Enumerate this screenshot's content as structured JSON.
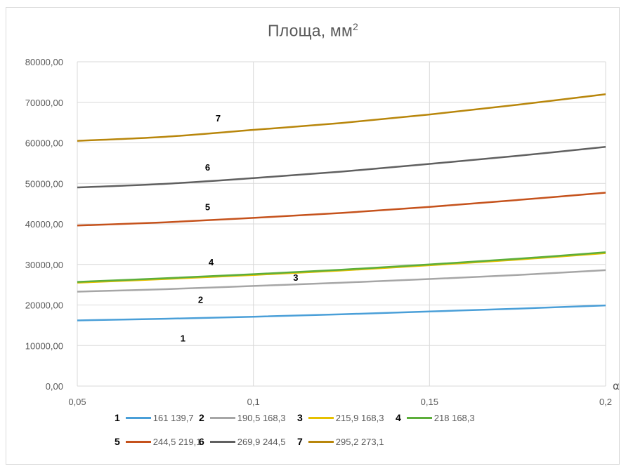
{
  "chart_data": {
    "type": "line",
    "title": "Площа, мм",
    "title_sup": "2",
    "xlabel": "α",
    "ylabel": "",
    "xlim": [
      0.05,
      0.2
    ],
    "ylim": [
      0,
      80000
    ],
    "x_ticks": [
      0.05,
      0.1,
      0.15,
      0.2
    ],
    "x_tick_labels": [
      "0,05",
      "0,1",
      "0,15",
      "0,2"
    ],
    "y_ticks": [
      0,
      10000,
      20000,
      30000,
      40000,
      50000,
      60000,
      70000,
      80000
    ],
    "y_tick_labels": [
      "0,00",
      "10000,00",
      "20000,00",
      "30000,00",
      "40000,00",
      "50000,00",
      "60000,00",
      "70000,00",
      "80000,00"
    ],
    "grid": true,
    "legend_position": "bottom",
    "x": [
      0.05,
      0.075,
      0.1,
      0.125,
      0.15,
      0.175,
      0.2
    ],
    "series": [
      {
        "id": "1",
        "name": "161 139,7",
        "color": "#4a9fd8",
        "label_at": [
          0.08,
          11000
        ],
        "values": [
          16200,
          16600,
          17100,
          17700,
          18400,
          19100,
          19900
        ]
      },
      {
        "id": "2",
        "name": "190,5 168,3",
        "color": "#a6a6a6",
        "label_at": [
          0.085,
          20500
        ],
        "values": [
          23300,
          23900,
          24700,
          25500,
          26400,
          27400,
          28600
        ]
      },
      {
        "id": "3",
        "name": "215,9 168,3",
        "color": "#e6c000",
        "label_at": [
          0.112,
          26000
        ],
        "values": [
          25500,
          26400,
          27400,
          28500,
          29800,
          31200,
          32800
        ]
      },
      {
        "id": "4",
        "name": "218 168,3",
        "color": "#5cae3a",
        "label_at": [
          0.088,
          29800
        ],
        "values": [
          25700,
          26600,
          27600,
          28700,
          30000,
          31400,
          33000
        ]
      },
      {
        "id": "5",
        "name": "244,5 219,1",
        "color": "#c5521c",
        "label_at": [
          0.087,
          43400
        ],
        "values": [
          39600,
          40400,
          41500,
          42700,
          44200,
          45900,
          47700
        ]
      },
      {
        "id": "6",
        "name": "269,9 244,5",
        "color": "#606060",
        "label_at": [
          0.087,
          53200
        ],
        "values": [
          49000,
          49900,
          51300,
          52900,
          54800,
          56800,
          59000
        ]
      },
      {
        "id": "7",
        "name": "295,2 273,1",
        "color": "#b8860b",
        "label_at": [
          0.09,
          65300
        ],
        "values": [
          60500,
          61500,
          63200,
          64900,
          67000,
          69400,
          72000
        ]
      }
    ]
  }
}
